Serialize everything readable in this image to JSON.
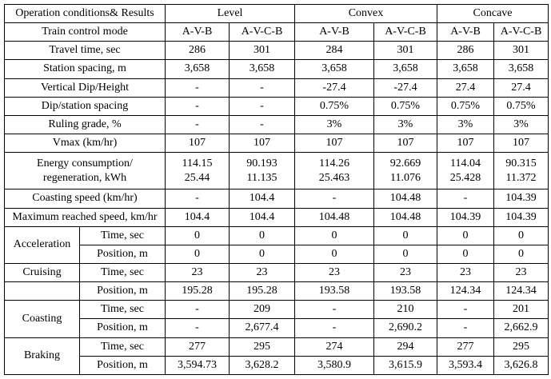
{
  "table": {
    "corner_label": "Operation conditions& Results",
    "col_groups": [
      "Level",
      "Convex",
      "Concave"
    ],
    "mode_label": "Train control mode",
    "modes": [
      "A-V-B",
      "A-V-C-B",
      "A-V-B",
      "A-V-C-B",
      "A-V-B",
      "A-V-C-B"
    ],
    "rows": [
      {
        "label": "Travel time, sec",
        "values": [
          "286",
          "301",
          "284",
          "301",
          "286",
          "301"
        ]
      },
      {
        "label": "Station spacing, m",
        "values": [
          "3,658",
          "3,658",
          "3,658",
          "3,658",
          "3,658",
          "3,658"
        ]
      },
      {
        "label": "Vertical Dip/Height",
        "values": [
          "-",
          "-",
          "-27.4",
          "-27.4",
          "27.4",
          "27.4"
        ]
      },
      {
        "label": "Dip/station spacing",
        "values": [
          "-",
          "-",
          "0.75%",
          "0.75%",
          "0.75%",
          "0.75%"
        ]
      },
      {
        "label": "Ruling grade, %",
        "values": [
          "-",
          "-",
          "3%",
          "3%",
          "3%",
          "3%"
        ]
      },
      {
        "label": "Vmax (km/hr)",
        "values": [
          "107",
          "107",
          "107",
          "107",
          "107",
          "107"
        ]
      },
      {
        "label": "Energy consumption/\nregeneration, kWh",
        "tall": true,
        "values": [
          "114.15\n25.44",
          "90.193\n11.135",
          "114.26\n25.463",
          "92.669\n11.076",
          "114.04\n25.428",
          "90.315\n11.372"
        ]
      },
      {
        "label": "Coasting speed (km/hr)",
        "values": [
          "-",
          "104.4",
          "-",
          "104.48",
          "-",
          "104.39"
        ]
      },
      {
        "label": "Maximum reached speed, km/hr",
        "values": [
          "104.4",
          "104.4",
          "104.48",
          "104.48",
          "104.39",
          "104.39"
        ]
      }
    ],
    "phases": [
      {
        "name": "Acceleration",
        "rows": [
          {
            "label": "Time, sec",
            "values": [
              "0",
              "0",
              "0",
              "0",
              "0",
              "0"
            ]
          },
          {
            "label": "Position, m",
            "values": [
              "0",
              "0",
              "0",
              "0",
              "0",
              "0"
            ]
          }
        ]
      },
      {
        "name": "Cruising",
        "split_label": true,
        "rows": [
          {
            "label": "Time, sec",
            "values": [
              "23",
              "23",
              "23",
              "23",
              "23",
              "23"
            ]
          },
          {
            "label": "Position, m",
            "values": [
              "195.28",
              "195.28",
              "193.58",
              "193.58",
              "124.34",
              "124.34"
            ]
          }
        ]
      },
      {
        "name": "Coasting",
        "rows": [
          {
            "label": "Time, sec",
            "values": [
              "-",
              "209",
              "-",
              "210",
              "-",
              "201"
            ]
          },
          {
            "label": "Position, m",
            "values": [
              "-",
              "2,677.4",
              "-",
              "2,690.2",
              "-",
              "2,662.9"
            ]
          }
        ]
      },
      {
        "name": "Braking",
        "rows": [
          {
            "label": "Time, sec",
            "values": [
              "277",
              "295",
              "274",
              "294",
              "277",
              "295"
            ]
          },
          {
            "label": "Position, m",
            "values": [
              "3,594.73",
              "3,628.2",
              "3,580.9",
              "3,615.9",
              "3,593.4",
              "3,626.8"
            ]
          }
        ]
      }
    ]
  }
}
